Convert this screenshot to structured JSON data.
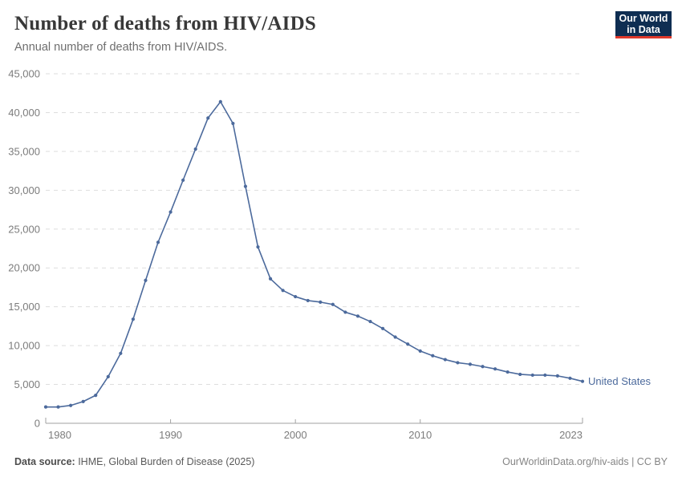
{
  "header": {
    "title": "Number of deaths from HIV/AIDS",
    "subtitle": "Annual number of deaths from HIV/AIDS.",
    "logo_line1": "Our World",
    "logo_line2": "in Data"
  },
  "colors": {
    "series_line": "#4c6a9c",
    "logo_bg": "#0f2e52",
    "logo_red": "#e0392b",
    "gridline": "#dedede",
    "axis_line": "#a2a2a2",
    "tick_label": "#7c7c7c"
  },
  "chart_data": {
    "type": "line",
    "title": "Number of deaths from HIV/AIDS",
    "subtitle": "Annual number of deaths from HIV/AIDS.",
    "xlabel": "",
    "ylabel": "",
    "xlim": [
      1980,
      2023
    ],
    "ylim": [
      0,
      45000
    ],
    "x_ticks": [
      1980,
      1990,
      2000,
      2010,
      2023
    ],
    "y_ticks": [
      0,
      5000,
      10000,
      15000,
      20000,
      25000,
      30000,
      35000,
      40000,
      45000
    ],
    "grid": "horizontal-dashed",
    "legend_position": "end-of-line-label",
    "series": [
      {
        "name": "United States",
        "color": "#4c6a9c",
        "x": [
          1980,
          1981,
          1982,
          1983,
          1984,
          1985,
          1986,
          1987,
          1988,
          1989,
          1990,
          1991,
          1992,
          1993,
          1994,
          1995,
          1996,
          1997,
          1998,
          1999,
          2000,
          2001,
          2002,
          2003,
          2004,
          2005,
          2006,
          2007,
          2008,
          2009,
          2010,
          2011,
          2012,
          2013,
          2014,
          2015,
          2016,
          2017,
          2018,
          2019,
          2020,
          2021,
          2022,
          2023
        ],
        "values": [
          2100,
          2100,
          2300,
          2800,
          3600,
          6000,
          9000,
          13400,
          18400,
          23300,
          27200,
          31300,
          35300,
          39300,
          41400,
          38600,
          30500,
          22700,
          18600,
          17100,
          16300,
          15800,
          15600,
          15300,
          14300,
          13800,
          13100,
          12200,
          11100,
          10200,
          9300,
          8700,
          8200,
          7800,
          7600,
          7300,
          7000,
          6600,
          6300,
          6200,
          6200,
          6100,
          5800,
          5400
        ]
      }
    ]
  },
  "footer": {
    "datasource_label": "Data source:",
    "datasource_value": " IHME, Global Burden of Disease (2025)",
    "link": "OurWorldinData.org/hiv-aids | CC BY"
  }
}
